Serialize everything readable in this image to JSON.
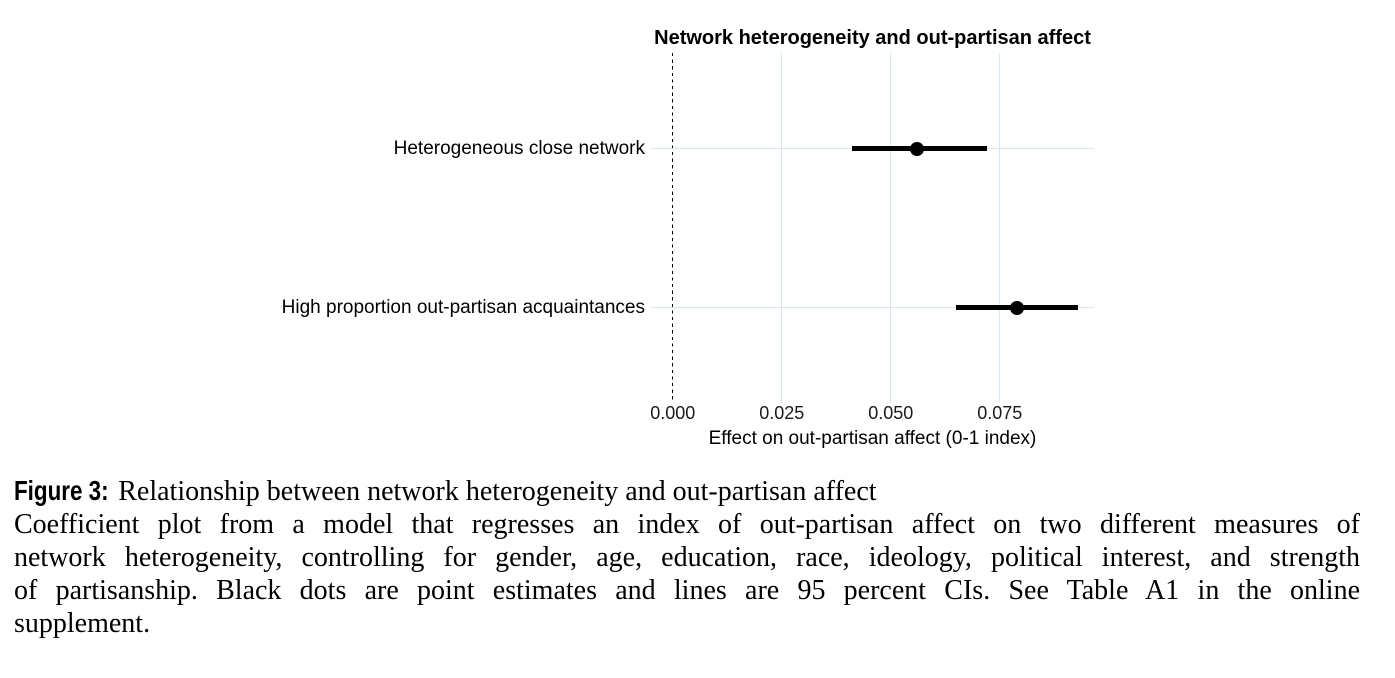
{
  "chart_data": {
    "type": "scatter",
    "variant": "coefficient_dot_whisker",
    "title": "Network heterogeneity and out-partisan affect",
    "xlabel": "Effect on out-partisan affect (0-1 index)",
    "ylabel": "",
    "xlim": [
      -0.005,
      0.0966
    ],
    "xticks": [
      0.0,
      0.025,
      0.05,
      0.075
    ],
    "xtick_labels": [
      "0.000",
      "0.025",
      "0.050",
      "0.075"
    ],
    "grid": true,
    "legend": false,
    "zero_line": {
      "x": 0,
      "style": "dashed",
      "color": "#000000"
    },
    "rows": [
      {
        "label": "Heterogeneous close network",
        "estimate": 0.056,
        "ci_low": 0.041,
        "ci_high": 0.072
      },
      {
        "label": "High proportion out-partisan acquaintances",
        "estimate": 0.079,
        "ci_low": 0.065,
        "ci_high": 0.093
      }
    ],
    "ci_level": "95 percent",
    "colors": {
      "point": "#000000",
      "ci_line": "#000000",
      "gridline": "#d6e7f0",
      "text": "#000000"
    }
  },
  "caption": {
    "figure_label": "Figure 3:",
    "figure_title": "Relationship between network heterogeneity and out-partisan affect",
    "body_lines": [
      "Coefficient plot from a model that regresses an index of out-partisan affect on two different measures of",
      "network heterogeneity, controlling for gender, age, education, race, ideology, political interest, and strength",
      "of partisanship. Black dots are point estimates and lines are 95 percent CIs. See Table A1 in the online",
      "supplement."
    ]
  }
}
